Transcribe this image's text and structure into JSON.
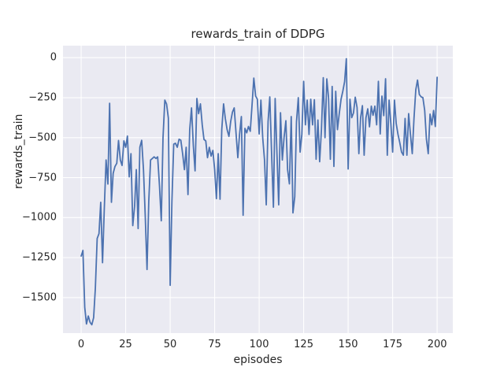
{
  "chart": {
    "title": "rewards_train of DDPG",
    "xlabel": "episodes",
    "ylabel": "rewards_train"
  },
  "chart_data": {
    "type": "line",
    "title": "rewards_train of DDPG",
    "xlabel": "episodes",
    "ylabel": "rewards_train",
    "x_ticks": [
      0,
      25,
      50,
      75,
      100,
      125,
      150,
      175,
      200
    ],
    "y_ticks": [
      0,
      -250,
      -500,
      -750,
      -1000,
      -1250,
      -1500
    ],
    "xlim": [
      -10.2,
      208.8
    ],
    "ylim": [
      -1722,
      75
    ],
    "grid": true,
    "legend_position": "none",
    "style": "seaborn-darkgrid",
    "line_color": "#4c72b0",
    "plot_background": "#eaeaf2",
    "grid_color": "#ffffff",
    "series": [
      {
        "name": "rewards_train",
        "x_start": 0,
        "x_step": 1,
        "values": [
          -1240,
          -1205,
          -1560,
          -1665,
          -1615,
          -1655,
          -1670,
          -1625,
          -1440,
          -1130,
          -1100,
          -904,
          -1282,
          -950,
          -640,
          -790,
          -285,
          -904,
          -723,
          -680,
          -660,
          -518,
          -640,
          -674,
          -520,
          -560,
          -490,
          -745,
          -600,
          -1050,
          -930,
          -700,
          -1068,
          -560,
          -517,
          -700,
          -985,
          -1324,
          -900,
          -640,
          -630,
          -620,
          -630,
          -620,
          -800,
          -1020,
          -500,
          -265,
          -290,
          -378,
          -1423,
          -900,
          -541,
          -535,
          -560,
          -510,
          -516,
          -600,
          -700,
          -560,
          -856,
          -450,
          -314,
          -550,
          -708,
          -255,
          -350,
          -289,
          -420,
          -511,
          -520,
          -625,
          -560,
          -615,
          -580,
          -700,
          -881,
          -600,
          -885,
          -450,
          -289,
          -380,
          -450,
          -492,
          -400,
          -340,
          -314,
          -470,
          -625,
          -480,
          -368,
          -985,
          -442,
          -470,
          -430,
          -460,
          -300,
          -128,
          -240,
          -260,
          -477,
          -265,
          -500,
          -640,
          -920,
          -400,
          -245,
          -600,
          -935,
          -255,
          -600,
          -920,
          -344,
          -640,
          -500,
          -394,
          -700,
          -789,
          -368,
          -970,
          -870,
          -400,
          -250,
          -590,
          -480,
          -148,
          -420,
          -265,
          -480,
          -260,
          -420,
          -263,
          -635,
          -390,
          -650,
          -450,
          -125,
          -500,
          -133,
          -250,
          -635,
          -180,
          -680,
          -210,
          -450,
          -350,
          -260,
          -210,
          -150,
          -6,
          -696,
          -260,
          -375,
          -345,
          -247,
          -311,
          -600,
          -375,
          -300,
          -610,
          -376,
          -320,
          -432,
          -303,
          -360,
          -303,
          -420,
          -148,
          -477,
          -240,
          -362,
          -132,
          -610,
          -265,
          -411,
          -590,
          -265,
          -411,
          -480,
          -530,
          -590,
          -610,
          -380,
          -610,
          -350,
          -480,
          -600,
          -380,
          -200,
          -140,
          -230,
          -245,
          -250,
          -330,
          -510,
          -600,
          -353,
          -420,
          -330,
          -430,
          -123
        ]
      }
    ]
  }
}
